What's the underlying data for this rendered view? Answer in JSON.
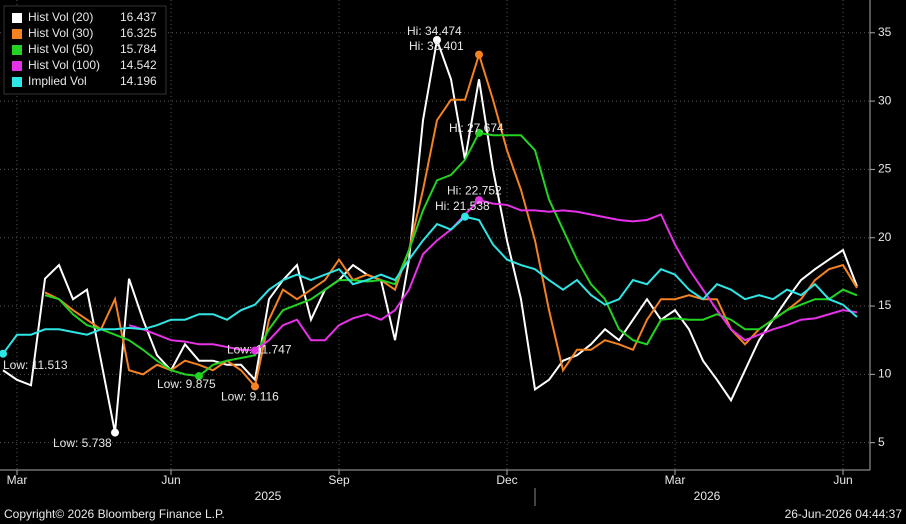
{
  "chart_data": {
    "type": "line",
    "categories": [
      null,
      "Mar",
      null,
      null,
      null,
      null,
      null,
      null,
      null,
      null,
      null,
      null,
      "Jun",
      null,
      null,
      null,
      null,
      null,
      null,
      null,
      null,
      null,
      null,
      null,
      "Sep",
      null,
      null,
      null,
      null,
      null,
      null,
      null,
      null,
      null,
      null,
      null,
      "Dec",
      null,
      null,
      null,
      null,
      null,
      null,
      null,
      null,
      null,
      null,
      null,
      "Mar",
      null,
      null,
      null,
      null,
      null,
      null,
      null,
      null,
      null,
      null,
      null,
      "Jun",
      null
    ],
    "year_labels": [
      "2025",
      "2026"
    ],
    "ylim": [
      3,
      37.4
    ],
    "yticks": [
      5,
      10,
      15,
      20,
      25,
      30,
      35
    ],
    "grid": true,
    "series": [
      {
        "name": "Hist Vol (20)",
        "color": "#ffffff",
        "hi_label": "Hi: 34.474",
        "low_label": "Low: 5.738",
        "values": [
          10.3,
          9.6,
          9.2,
          17,
          18,
          15.5,
          16.2,
          11,
          5.738,
          17,
          14,
          11.4,
          10.3,
          12.2,
          11,
          11,
          10.7,
          10.7,
          9.6,
          15.5,
          16.9,
          18,
          14,
          16.2,
          16.9,
          18,
          17.3,
          16.9,
          12.5,
          18.4,
          28.6,
          34.474,
          31.6,
          25.7,
          31.6,
          25,
          19.8,
          15.5,
          8.9,
          9.6,
          11,
          11.4,
          12.2,
          13.3,
          12.5,
          14,
          15.5,
          14,
          14.7,
          13.3,
          11,
          9.6,
          8.1,
          10.3,
          12.5,
          14,
          15.5,
          16.9,
          17.7,
          18.4,
          19.1,
          16.437
        ]
      },
      {
        "name": "Hist Vol (30)",
        "color": "#f58220",
        "hi_label": "Hi: 33.401",
        "low_label": "Low: 9.116",
        "values": [
          null,
          null,
          null,
          16,
          15.5,
          14.7,
          14,
          13.3,
          15.5,
          10.3,
          10,
          10.7,
          10.3,
          11,
          10.7,
          10.3,
          11,
          10.3,
          9.116,
          14,
          16.2,
          15.5,
          16.2,
          16.9,
          18.4,
          16.9,
          17.3,
          16.9,
          16.2,
          19.1,
          23.5,
          28.6,
          30.1,
          30.1,
          33.401,
          30.1,
          26.4,
          23.5,
          19.8,
          14.7,
          10.3,
          11.8,
          11.8,
          12.5,
          12.2,
          11.8,
          14,
          15.5,
          15.5,
          15.8,
          15.5,
          15.5,
          13.3,
          12.2,
          13.3,
          14,
          14.7,
          15.5,
          16.9,
          17.7,
          18,
          16.325
        ]
      },
      {
        "name": "Hist Vol (50)",
        "color": "#22d322",
        "hi_label": "Hi: 27.674",
        "low_label": "Low: 9.875",
        "values": [
          null,
          null,
          null,
          15.8,
          15.5,
          14.4,
          13.6,
          13.3,
          12.9,
          12.5,
          11.8,
          11,
          10.3,
          10,
          9.875,
          10.7,
          11,
          11.2,
          11.4,
          13.3,
          14.7,
          15.1,
          15.5,
          16.2,
          16.9,
          16.9,
          16.8,
          16.9,
          16.6,
          19.1,
          22,
          24.2,
          24.6,
          25.7,
          27.674,
          27.5,
          27.5,
          27.5,
          26.4,
          22.8,
          20.6,
          18.4,
          16.6,
          15.5,
          13.3,
          12.5,
          12.2,
          14,
          14.1,
          14,
          14,
          14.4,
          14,
          13.3,
          13.3,
          14,
          14.7,
          15.1,
          15.5,
          15.5,
          16.2,
          15.784
        ]
      },
      {
        "name": "Hist Vol (100)",
        "color": "#e632e6",
        "hi_label": "Hi: 22.752",
        "low_label": "Low: 11.747",
        "values": [
          null,
          null,
          null,
          null,
          null,
          null,
          null,
          null,
          null,
          13.6,
          13.3,
          12.9,
          12.5,
          12.4,
          12.2,
          12.2,
          12,
          11.8,
          11.747,
          12.5,
          13.6,
          14,
          12.5,
          12.5,
          13.6,
          14.1,
          14.4,
          14,
          14.7,
          16.2,
          18.8,
          19.8,
          20.6,
          21.7,
          22.752,
          22.5,
          22.4,
          22,
          22,
          21.9,
          22,
          21.9,
          21.7,
          21.5,
          21.3,
          21.2,
          21.3,
          21.7,
          19.5,
          17.7,
          16.2,
          14.7,
          13.3,
          12.5,
          12.9,
          13.3,
          13.6,
          14,
          14.1,
          14.4,
          14.7,
          14.542
        ]
      },
      {
        "name": "Implied Vol",
        "color": "#2ee6e6",
        "hi_label": "Hi: 21.538",
        "low_label": "Low: 11.513",
        "values": [
          11.513,
          12.9,
          12.9,
          13.3,
          13.3,
          13.1,
          12.9,
          13.3,
          13.3,
          13.4,
          13.3,
          13.6,
          14,
          14,
          14.4,
          14.4,
          14,
          14.7,
          15.1,
          16.2,
          16.9,
          17.3,
          16.9,
          17.3,
          17.7,
          16.6,
          16.9,
          17.3,
          16.9,
          18.4,
          19.8,
          21,
          20.6,
          21.538,
          21.3,
          19.5,
          18.4,
          18,
          17.7,
          16.9,
          16.2,
          16.9,
          15.8,
          15.1,
          15.5,
          16.9,
          16.6,
          17.7,
          17.3,
          16.2,
          15.5,
          16.6,
          16.2,
          15.5,
          15.8,
          15.5,
          16.2,
          15.8,
          16.6,
          15.5,
          15.1,
          14.196
        ]
      }
    ],
    "copyright": "Copyright© 2026 Bloomberg Finance L.P.",
    "timestamp": "26-Jun-2026 04:44:37"
  }
}
